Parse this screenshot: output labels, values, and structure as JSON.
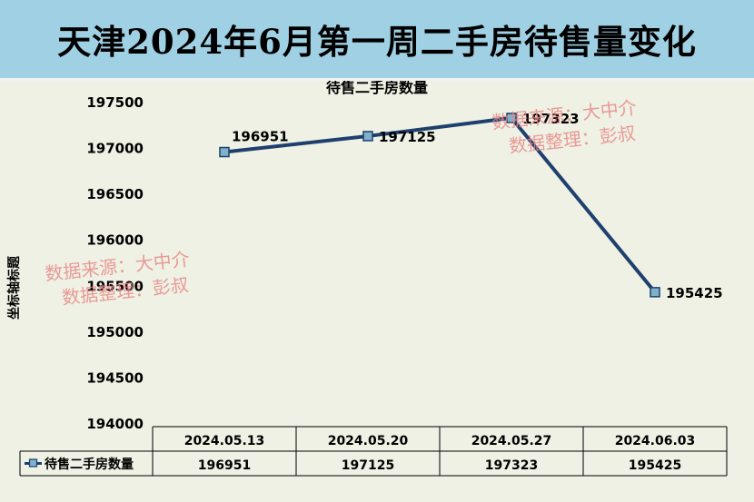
{
  "page_title": "天津2024年6月第一周二手房待售量变化",
  "watermark": {
    "line1": "数据来源：大中介",
    "line2": "数据整理：彭叔"
  },
  "colors": {
    "title_bg": "#9fd0e3",
    "plot_bg": "#eef1e4",
    "series_line": "#1f3f6e",
    "marker_fill": "#7fb2c9",
    "watermark": "#e88585"
  },
  "chart_data": {
    "type": "line",
    "title": "待售二手房数量",
    "ylabel": "坐标轴标题",
    "xlabel": "",
    "ylim": [
      194000,
      197500
    ],
    "yticks": [
      194000,
      194500,
      195000,
      195500,
      196000,
      196500,
      197000,
      197500
    ],
    "categories": [
      "2024.05.13",
      "2024.05.20",
      "2024.05.27",
      "2024.06.03"
    ],
    "series": [
      {
        "name": "待售二手房数量",
        "values": [
          196951,
          197125,
          197323,
          195425
        ]
      }
    ],
    "grid": false,
    "legend": "data-table",
    "data_table": true
  }
}
